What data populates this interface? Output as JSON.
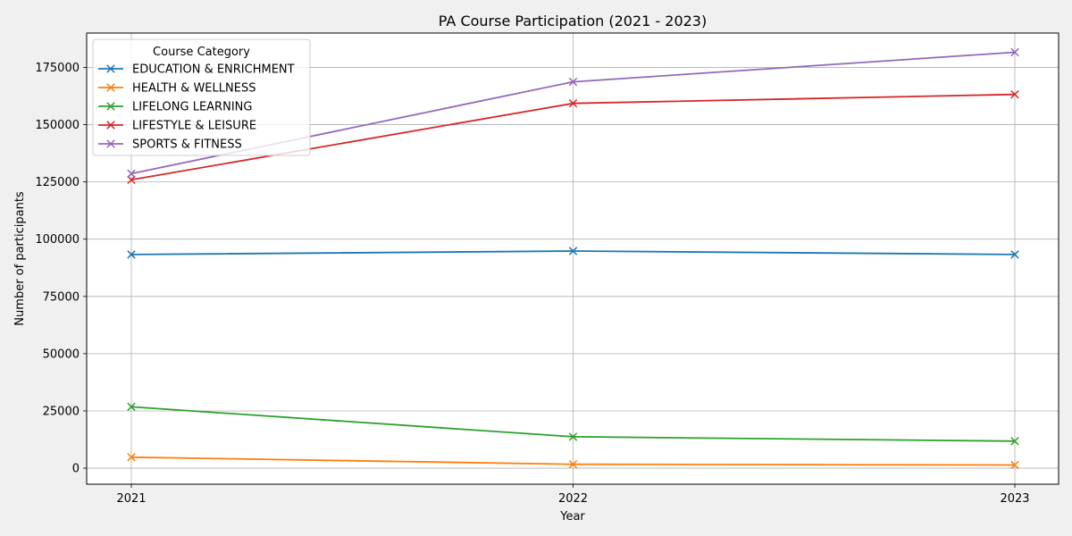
{
  "chart_data": {
    "type": "line",
    "title": "PA Course Participation (2021 - 2023)",
    "xlabel": "Year",
    "ylabel": "Number of participants",
    "categories": [
      "2021",
      "2022",
      "2023"
    ],
    "yticks": [
      0,
      25000,
      50000,
      75000,
      100000,
      125000,
      150000,
      175000
    ],
    "ylim": [
      -7000,
      190000
    ],
    "grid": true,
    "legend": {
      "title": "Course Category",
      "placement": "top-left"
    },
    "marker": "x",
    "series": [
      {
        "name": "EDUCATION & ENRICHMENT",
        "color": "#1f77b4",
        "values": [
          93300,
          94800,
          93300
        ]
      },
      {
        "name": "HEALTH & WELLNESS",
        "color": "#ff7f0e",
        "values": [
          4800,
          1700,
          1400
        ]
      },
      {
        "name": "LIFELONG LEARNING",
        "color": "#2ca02c",
        "values": [
          26800,
          13700,
          11800
        ]
      },
      {
        "name": "LIFESTYLE & LEISURE",
        "color": "#d62728",
        "values": [
          125900,
          159300,
          163200
        ]
      },
      {
        "name": "SPORTS & FITNESS",
        "color": "#9467bd",
        "values": [
          128600,
          168700,
          181600
        ]
      }
    ]
  }
}
